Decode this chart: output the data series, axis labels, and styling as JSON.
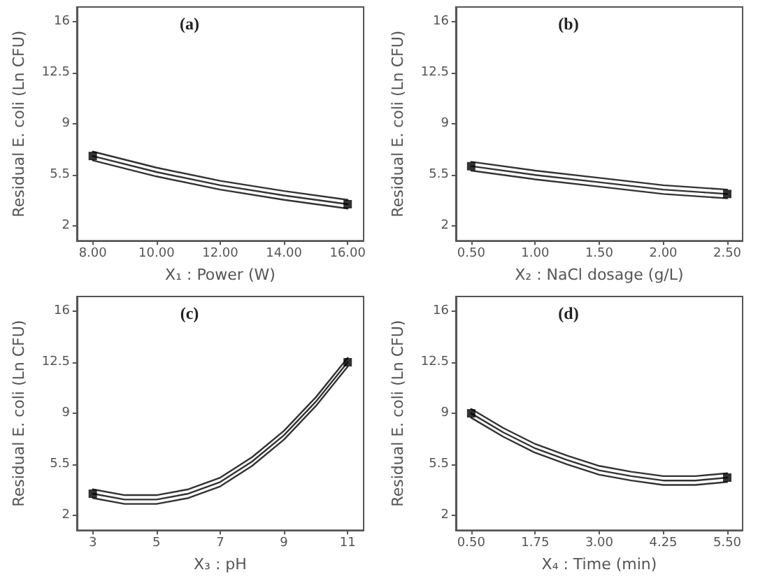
{
  "chart_data": [
    {
      "type": "line",
      "title": "(a)",
      "xlabel": "X₁ : Power (W)",
      "ylabel": "Residual E. coli (Ln CFU)",
      "xlim": [
        7.5,
        16.5
      ],
      "ylim": [
        1,
        17
      ],
      "xticks": [
        {
          "value": 8,
          "label": "8.00"
        },
        {
          "value": 10,
          "label": "10.00"
        },
        {
          "value": 12,
          "label": "12.00"
        },
        {
          "value": 14,
          "label": "14.00"
        },
        {
          "value": 16,
          "label": "16.00"
        }
      ],
      "yticks": [
        2,
        5.5,
        9,
        12.5,
        16
      ],
      "grid": false,
      "marker": "none",
      "line_style": "solid",
      "series": [
        {
          "color": "#333333",
          "x": [
            8,
            10,
            12,
            14,
            16
          ],
          "values": [
            7.1,
            6.0,
            5.1,
            4.4,
            3.8
          ]
        },
        {
          "color": "#333333",
          "x": [
            8,
            10,
            12,
            14,
            16
          ],
          "values": [
            6.8,
            5.7,
            4.8,
            4.1,
            3.5
          ]
        },
        {
          "color": "#333333",
          "x": [
            8,
            10,
            12,
            14,
            16
          ],
          "values": [
            6.5,
            5.4,
            4.5,
            3.8,
            3.2
          ]
        },
        {
          "type": "scatter",
          "color": "#000000",
          "x": [
            8,
            16
          ],
          "values": [
            6.8,
            3.5
          ],
          "marker": "square"
        }
      ]
    },
    {
      "type": "line",
      "title": "(b)",
      "xlabel": "X₂ : NaCl dosage (g/L)",
      "ylabel": "Residual E. coli (Ln CFU)",
      "xlim": [
        0.38,
        2.62
      ],
      "ylim": [
        1,
        17
      ],
      "xticks": [
        {
          "value": 0.5,
          "label": "0.50"
        },
        {
          "value": 1,
          "label": "1.00"
        },
        {
          "value": 1.5,
          "label": "1.50"
        },
        {
          "value": 2,
          "label": "2.00"
        },
        {
          "value": 2.5,
          "label": "2.50"
        }
      ],
      "yticks": [
        2,
        5.5,
        9,
        12.5,
        16
      ],
      "grid": false,
      "marker": "none",
      "line_style": "solid",
      "series": [
        {
          "color": "#333333",
          "x": [
            0.5,
            1,
            1.5,
            2,
            2.5
          ],
          "values": [
            6.4,
            5.8,
            5.3,
            4.8,
            4.5
          ]
        },
        {
          "color": "#333333",
          "x": [
            0.5,
            1,
            1.5,
            2,
            2.5
          ],
          "values": [
            6.1,
            5.5,
            5.0,
            4.5,
            4.2
          ]
        },
        {
          "color": "#333333",
          "x": [
            0.5,
            1,
            1.5,
            2,
            2.5
          ],
          "values": [
            5.8,
            5.2,
            4.7,
            4.2,
            3.9
          ]
        },
        {
          "type": "scatter",
          "color": "#000000",
          "x": [
            0.5,
            2.5
          ],
          "values": [
            6.1,
            4.2
          ],
          "marker": "square"
        }
      ]
    },
    {
      "type": "line",
      "title": "(c)",
      "xlabel": "X₃ : pH",
      "ylabel": "Residual E. coli (Ln CFU)",
      "xlim": [
        2.5,
        11.5
      ],
      "ylim": [
        1,
        17
      ],
      "xticks": [
        3,
        5,
        7,
        9,
        11
      ],
      "yticks": [
        2,
        5.5,
        9,
        12.5,
        16
      ],
      "grid": false,
      "marker": "none",
      "line_style": "solid",
      "series": [
        {
          "color": "#333333",
          "x": [
            3,
            4,
            5,
            6,
            7,
            8,
            9,
            10,
            11
          ],
          "values": [
            3.8,
            3.4,
            3.4,
            3.8,
            4.6,
            6.0,
            7.8,
            10.1,
            12.8
          ]
        },
        {
          "color": "#333333",
          "x": [
            3,
            4,
            5,
            6,
            7,
            8,
            9,
            10,
            11
          ],
          "values": [
            3.5,
            3.1,
            3.1,
            3.5,
            4.3,
            5.7,
            7.5,
            9.8,
            12.5
          ]
        },
        {
          "color": "#333333",
          "x": [
            3,
            4,
            5,
            6,
            7,
            8,
            9,
            10,
            11
          ],
          "values": [
            3.2,
            2.8,
            2.8,
            3.2,
            4.0,
            5.4,
            7.2,
            9.5,
            12.2
          ]
        },
        {
          "type": "scatter",
          "color": "#000000",
          "x": [
            3,
            11
          ],
          "values": [
            3.5,
            12.5
          ],
          "marker": "square"
        }
      ]
    },
    {
      "type": "line",
      "title": "(d)",
      "xlabel": "X₄ : Time (min)",
      "ylabel": "Residual E. coli (Ln CFU)",
      "xlim": [
        0.2,
        5.8
      ],
      "ylim": [
        1,
        17
      ],
      "xticks": [
        {
          "value": 0.5,
          "label": "0.50"
        },
        {
          "value": 1.75,
          "label": "1.75"
        },
        {
          "value": 3,
          "label": "3.00"
        },
        {
          "value": 4.25,
          "label": "4.25"
        },
        {
          "value": 5.5,
          "label": "5.50"
        }
      ],
      "yticks": [
        2,
        5.5,
        9,
        12.5,
        16
      ],
      "grid": false,
      "marker": "none",
      "line_style": "solid",
      "series": [
        {
          "color": "#333333",
          "x": [
            0.5,
            1.125,
            1.75,
            2.375,
            3,
            3.625,
            4.25,
            4.875,
            5.5
          ],
          "values": [
            9.3,
            8.0,
            6.9,
            6.1,
            5.4,
            5.0,
            4.7,
            4.7,
            4.9
          ]
        },
        {
          "color": "#333333",
          "x": [
            0.5,
            1.125,
            1.75,
            2.375,
            3,
            3.625,
            4.25,
            4.875,
            5.5
          ],
          "values": [
            9.0,
            7.7,
            6.6,
            5.8,
            5.1,
            4.7,
            4.4,
            4.4,
            4.6
          ]
        },
        {
          "color": "#333333",
          "x": [
            0.5,
            1.125,
            1.75,
            2.375,
            3,
            3.625,
            4.25,
            4.875,
            5.5
          ],
          "values": [
            8.7,
            7.4,
            6.3,
            5.5,
            4.8,
            4.4,
            4.1,
            4.1,
            4.3
          ]
        },
        {
          "type": "scatter",
          "color": "#000000",
          "x": [
            0.5,
            5.5
          ],
          "values": [
            9.0,
            4.6
          ],
          "marker": "square"
        }
      ]
    }
  ]
}
